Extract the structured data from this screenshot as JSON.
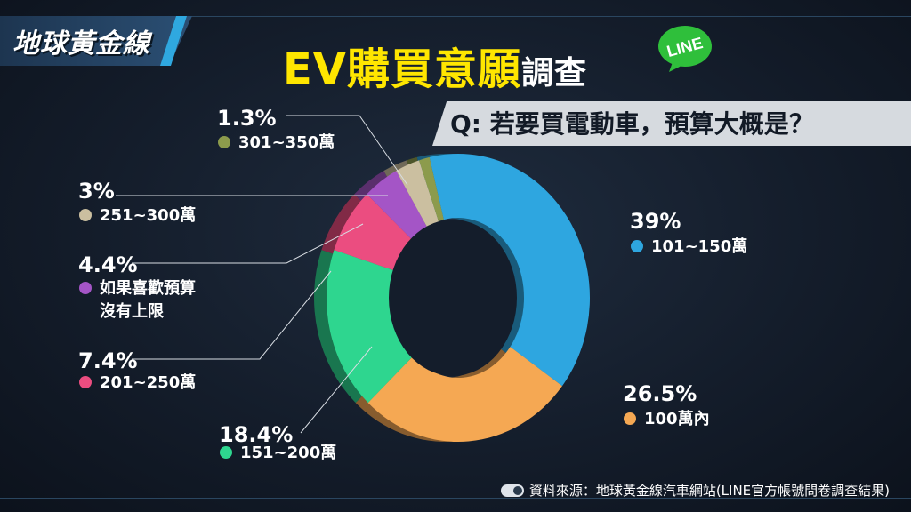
{
  "logo": "地球黃金線",
  "title": {
    "main": "EV購買意願",
    "suffix": "調查"
  },
  "badge": "LINE",
  "question": "Q: 若要買電動車，預算大概是？",
  "source": "資料來源：地球黃金線汽車網站(LINE官方帳號問卷調查結果)",
  "colors": {
    "title": "#ffe600",
    "badge": "#2fbf3b"
  },
  "chart_data": {
    "type": "pie",
    "donut": true,
    "title": "EV購買意願調查",
    "subtitle": "Q: 若要買電動車，預算大概是？",
    "slices": [
      {
        "label": "101~150萬",
        "value": 39,
        "pct_label": "39%",
        "color": "#2ea6e0",
        "side": "right"
      },
      {
        "label": "100萬內",
        "value": 26.5,
        "pct_label": "26.5%",
        "color": "#f5a853",
        "side": "right"
      },
      {
        "label": "151~200萬",
        "value": 18.4,
        "pct_label": "18.4%",
        "color": "#2ed68f",
        "side": "left"
      },
      {
        "label": "201~250萬",
        "value": 7.4,
        "pct_label": "7.4%",
        "color": "#eb4d80",
        "side": "left"
      },
      {
        "label": "如果喜歡預算沒有上限",
        "value": 4.4,
        "pct_label": "4.4%",
        "color": "#a455c6",
        "side": "left"
      },
      {
        "label": "251~300萬",
        "value": 3,
        "pct_label": "3%",
        "color": "#cbbfa0",
        "side": "left"
      },
      {
        "label": "301~350萬",
        "value": 1.3,
        "pct_label": "1.3%",
        "color": "#8c9b4c",
        "side": "left"
      }
    ]
  }
}
